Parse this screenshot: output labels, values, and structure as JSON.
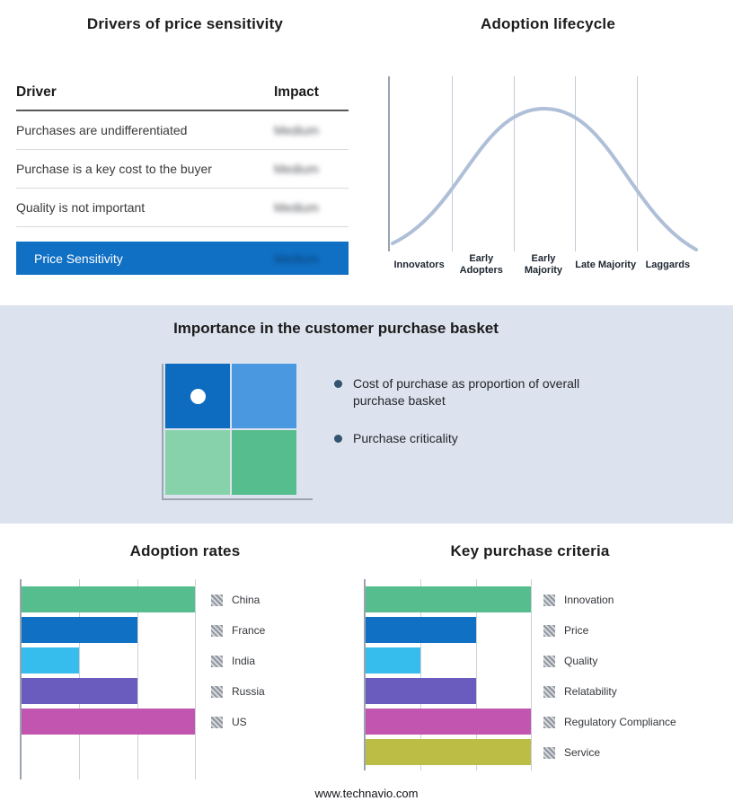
{
  "drivers_panel": {
    "title": "Drivers of price sensitivity",
    "columns": {
      "driver": "Driver",
      "impact": "Impact"
    },
    "rows": [
      {
        "driver": "Purchases are undifferentiated",
        "impact_text": "Medium",
        "redacted": true
      },
      {
        "driver": "Purchase is a key cost to the buyer",
        "impact_text": "Medium",
        "redacted": true
      },
      {
        "driver": "Quality is not important",
        "impact_text": "Medium",
        "redacted": true
      }
    ],
    "highlight_row": {
      "driver": "Price Sensitivity",
      "impact_text": "Medium",
      "redacted": true,
      "background": "#1070c4"
    }
  },
  "purchase_basket": {
    "title": "Importance in the customer purchase basket",
    "bullets": [
      "Cost of purchase as proportion of overall purchase basket",
      "Purchase criticality"
    ],
    "quadrant": {
      "colors": [
        [
          "#0d6cc0",
          "#4a99e0"
        ],
        [
          "#88d2ab",
          "#55bd8e"
        ]
      ],
      "marker": {
        "row": 0,
        "col": 0,
        "color": "#ffffff"
      }
    }
  },
  "chart_data": [
    {
      "name": "adoption-lifecycle",
      "type": "line",
      "title": "Adoption lifecycle",
      "categories": [
        "Innovators",
        "Early Adopters",
        "Early Majority",
        "Late Majority",
        "Laggards"
      ],
      "shape": "bell curve (normal distribution) peaking over Early Majority",
      "line_color": "#aebfd7",
      "grid": "vertical category separator lines"
    },
    {
      "name": "adoption-rates",
      "type": "bar",
      "orientation": "horizontal",
      "title": "Adoption rates",
      "categories": [
        "China",
        "France",
        "India",
        "Russia",
        "US"
      ],
      "values": [
        3,
        2,
        1,
        2,
        3
      ],
      "colors": [
        "#55bd8e",
        "#1070c4",
        "#36bdee",
        "#6a5cbf",
        "#c255b0"
      ],
      "xlim": [
        0,
        3
      ],
      "grid": true,
      "legend_position": "right"
    },
    {
      "name": "key-purchase-criteria",
      "type": "bar",
      "orientation": "horizontal",
      "title": "Key purchase criteria",
      "categories": [
        "Innovation",
        "Price",
        "Quality",
        "Relatability",
        "Regulatory Compliance",
        "Service"
      ],
      "values": [
        3,
        2,
        1,
        2,
        3,
        3
      ],
      "colors": [
        "#55bd8e",
        "#1070c4",
        "#36bdee",
        "#6a5cbf",
        "#c255b0",
        "#bcbd44"
      ],
      "xlim": [
        0,
        3
      ],
      "grid": true,
      "legend_position": "right"
    }
  ],
  "colors": {
    "band_background": "#dce3ee",
    "axis": "#9aa3ae",
    "gridline": "#cdd2d8",
    "legend_marker_hatch": "#8f959d"
  },
  "footer": {
    "text": "www.technavio.com"
  }
}
